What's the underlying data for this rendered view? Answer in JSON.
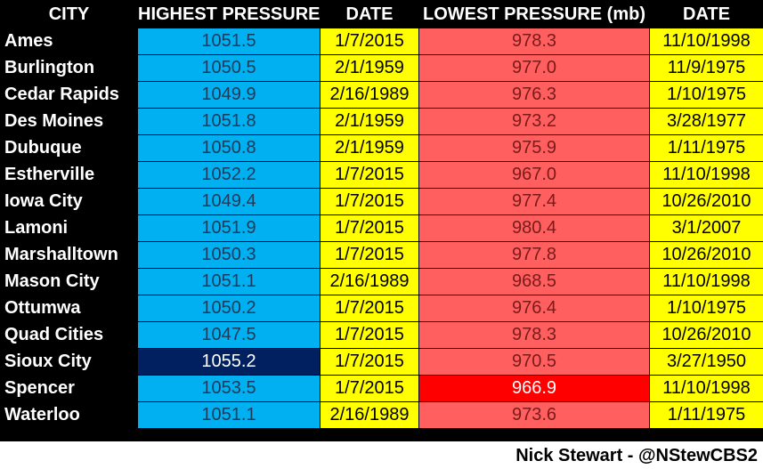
{
  "table": {
    "headers": [
      "CITY",
      "HIGHEST PRESSURE",
      "DATE",
      "LOWEST PRESSURE (mb)",
      "DATE"
    ],
    "rows": [
      {
        "city": "Ames",
        "high": "1051.5",
        "high_date": "1/7/2015",
        "low": "978.3",
        "low_date": "11/10/1998"
      },
      {
        "city": "Burlington",
        "high": "1050.5",
        "high_date": "2/1/1959",
        "low": "977.0",
        "low_date": "11/9/1975"
      },
      {
        "city": "Cedar Rapids",
        "high": "1049.9",
        "high_date": "2/16/1989",
        "low": "976.3",
        "low_date": "1/10/1975"
      },
      {
        "city": "Des Moines",
        "high": "1051.8",
        "high_date": "2/1/1959",
        "low": "973.2",
        "low_date": "3/28/1977"
      },
      {
        "city": "Dubuque",
        "high": "1050.8",
        "high_date": "2/1/1959",
        "low": "975.9",
        "low_date": "1/11/1975"
      },
      {
        "city": "Estherville",
        "high": "1052.2",
        "high_date": "1/7/2015",
        "low": "967.0",
        "low_date": "11/10/1998"
      },
      {
        "city": "Iowa City",
        "high": "1049.4",
        "high_date": "1/7/2015",
        "low": "977.4",
        "low_date": "10/26/2010"
      },
      {
        "city": "Lamoni",
        "high": "1051.9",
        "high_date": "1/7/2015",
        "low": "980.4",
        "low_date": "3/1/2007"
      },
      {
        "city": "Marshalltown",
        "high": "1050.3",
        "high_date": "1/7/2015",
        "low": "977.8",
        "low_date": "10/26/2010"
      },
      {
        "city": "Mason City",
        "high": "1051.1",
        "high_date": "2/16/1989",
        "low": "968.5",
        "low_date": "11/10/1998"
      },
      {
        "city": "Ottumwa",
        "high": "1050.2",
        "high_date": "1/7/2015",
        "low": "976.4",
        "low_date": "1/10/1975"
      },
      {
        "city": "Quad Cities",
        "high": "1047.5",
        "high_date": "1/7/2015",
        "low": "978.3",
        "low_date": "10/26/2010"
      },
      {
        "city": "Sioux City",
        "high": "1055.2",
        "high_date": "1/7/2015",
        "low": "970.5",
        "low_date": "3/27/1950"
      },
      {
        "city": "Spencer",
        "high": "1053.5",
        "high_date": "1/7/2015",
        "low": "966.9",
        "low_date": "11/10/1998"
      },
      {
        "city": "Waterloo",
        "high": "1051.1",
        "high_date": "2/16/1989",
        "low": "973.6",
        "low_date": "1/11/1975"
      }
    ]
  },
  "credit": "Nick Stewart - @NStewCBS2",
  "colors": {
    "high_fill": "#00b0f0",
    "high_record_fill": "#002060",
    "date_fill": "#ffff00",
    "low_fill": "#ff5f5f",
    "low_record_fill": "#ff0000"
  }
}
